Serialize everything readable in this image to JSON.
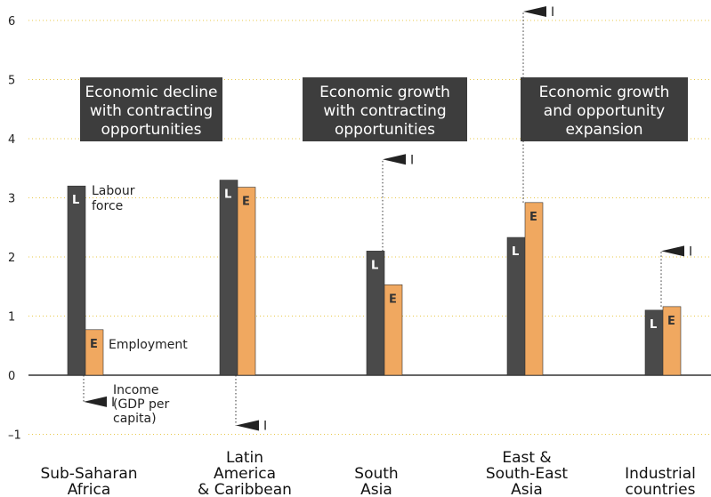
{
  "chart_data": {
    "type": "bar",
    "categories": [
      [
        "Sub-Saharan",
        "Africa"
      ],
      [
        "Latin",
        "America",
        "& Caribbean"
      ],
      [
        "South",
        "Asia"
      ],
      [
        "East &",
        "South-East",
        "Asia"
      ],
      [
        "Industrial",
        "countries"
      ]
    ],
    "series": [
      {
        "letter": "L",
        "color": "#4a4a4a",
        "values": [
          3.2,
          3.3,
          2.1,
          2.33,
          1.1
        ]
      },
      {
        "letter": "E",
        "color": "#f0a860",
        "values": [
          0.77,
          3.18,
          1.53,
          2.92,
          1.16
        ]
      },
      {
        "letter": "I",
        "values": [
          -0.45,
          -0.85,
          3.65,
          6.15,
          2.1
        ]
      }
    ],
    "ylim": [
      -1.2,
      6.4
    ],
    "yticks": [
      -1,
      0,
      1,
      2,
      3,
      4,
      5,
      6
    ],
    "ytick_labels": [
      "–1",
      "0",
      "1",
      "2",
      "3",
      "4",
      "5",
      "6"
    ],
    "grid": true,
    "annotations": {
      "labour": [
        "Labour",
        "force"
      ],
      "employment": "Employment",
      "income": [
        "Income",
        "(GDP per",
        "capita)"
      ]
    },
    "region_boxes": [
      {
        "lines": [
          "Economic decline",
          "with contracting",
          "opportunities"
        ]
      },
      {
        "lines": [
          "Economic growth",
          "with contracting",
          "opportunities"
        ]
      },
      {
        "lines": [
          "Economic growth",
          "and opportunity",
          "expansion"
        ]
      }
    ]
  }
}
